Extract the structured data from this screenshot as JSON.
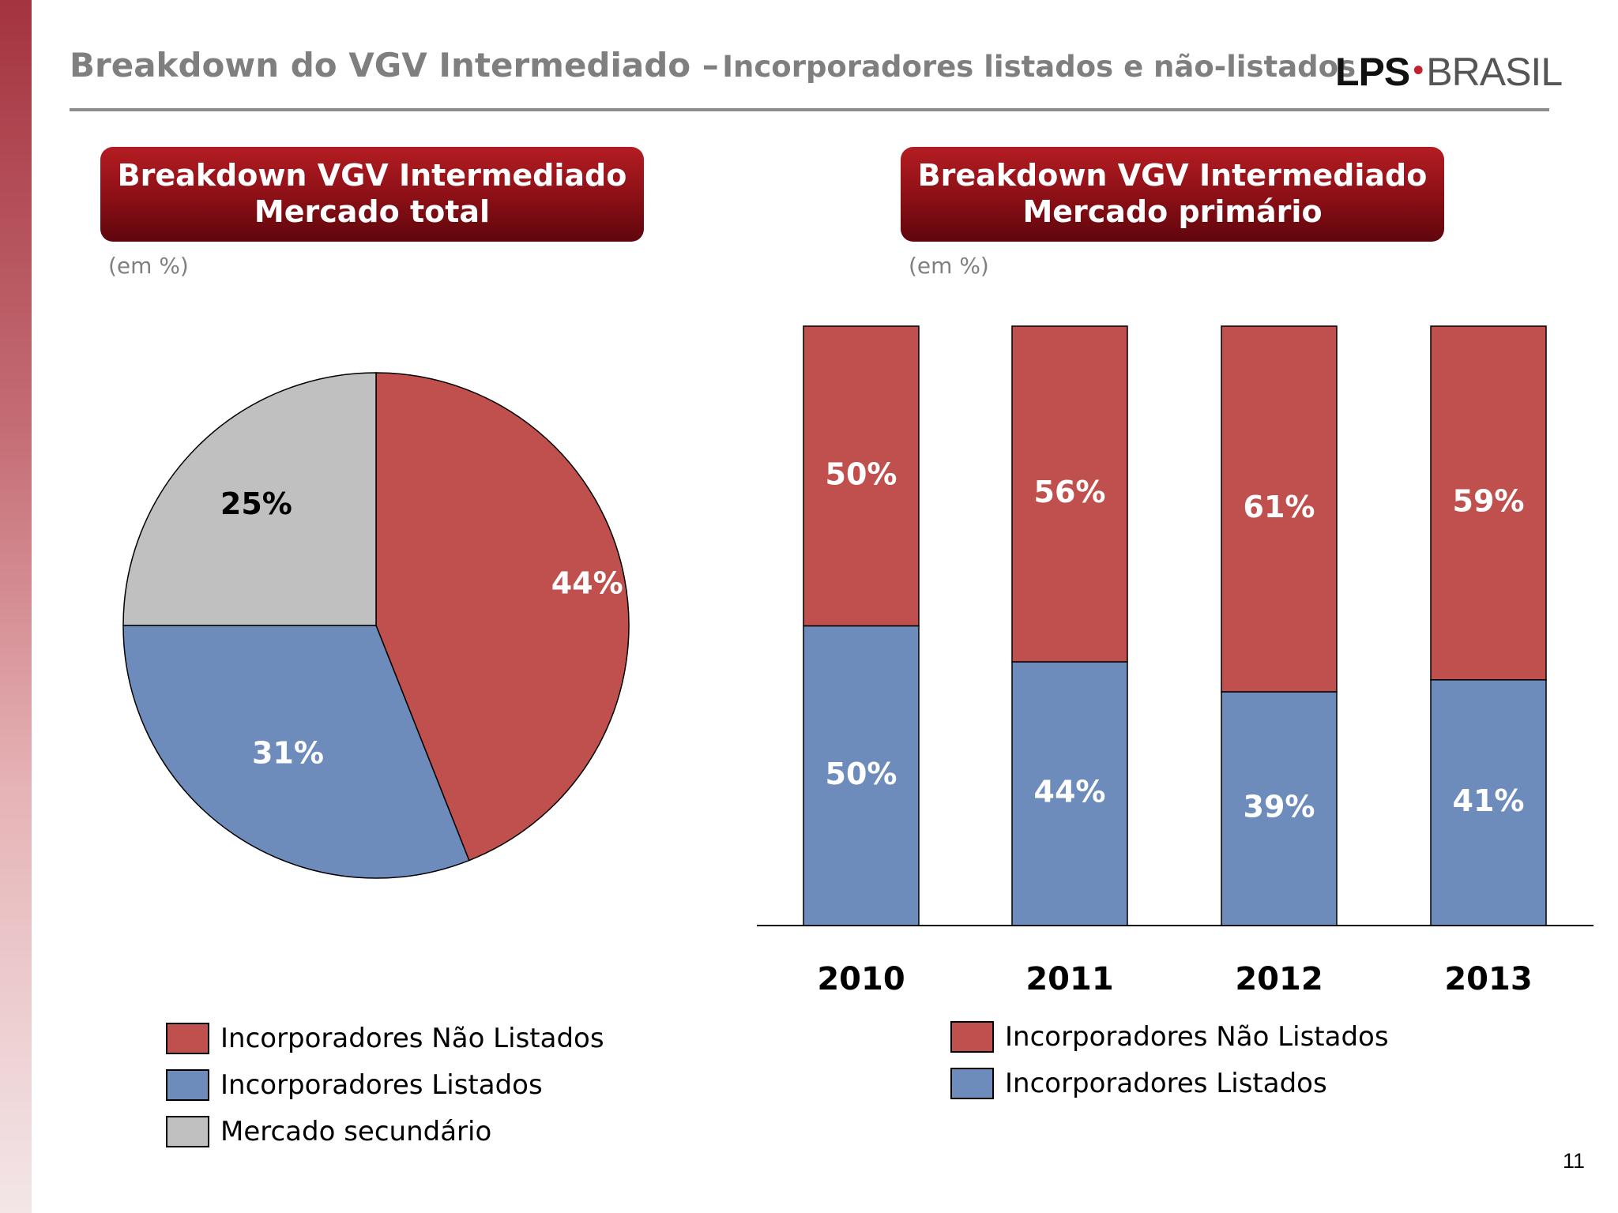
{
  "title": {
    "main": "Breakdown do VGV Intermediado –",
    "sub": "Incorporadores listados e não-listados"
  },
  "logo": {
    "lps": "LPS",
    "dot": "•",
    "brasil": "BRASIL"
  },
  "page_number": "11",
  "colors": {
    "nao_listados": "#c0504d",
    "listados": "#6e8cbb",
    "secundario": "#c0c0c0",
    "header_box": "#8a0f16"
  },
  "left_panel": {
    "header_line1": "Breakdown VGV Intermediado",
    "header_line2": "Mercado total",
    "unit": "(em %)",
    "legend": [
      "Incorporadores Não Listados",
      "Incorporadores Listados",
      "Mercado secundário"
    ]
  },
  "right_panel": {
    "header_line1": "Breakdown VGV Intermediado",
    "header_line2": "Mercado primário",
    "unit": "(em %)",
    "legend": [
      "Incorporadores Não Listados",
      "Incorporadores Listados"
    ]
  },
  "chart_data": [
    {
      "type": "pie",
      "title": "Breakdown VGV Intermediado Mercado total",
      "slices": [
        {
          "name": "Incorporadores Não Listados",
          "value": 44,
          "label": "44%",
          "color": "#c0504d"
        },
        {
          "name": "Incorporadores Listados",
          "value": 31,
          "label": "31%",
          "color": "#6e8cbb"
        },
        {
          "name": "Mercado secundário",
          "value": 25,
          "label": "25%",
          "color": "#c0c0c0"
        }
      ]
    },
    {
      "type": "bar",
      "stacked": true,
      "title": "Breakdown VGV Intermediado Mercado primário",
      "categories": [
        "2010",
        "2011",
        "2012",
        "2013"
      ],
      "series": [
        {
          "name": "Incorporadores Listados",
          "values": [
            50,
            44,
            39,
            41
          ],
          "labels": [
            "50%",
            "44%",
            "39%",
            "41%"
          ],
          "color": "#6e8cbb"
        },
        {
          "name": "Incorporadores Não Listados",
          "values": [
            50,
            56,
            61,
            59
          ],
          "labels": [
            "50%",
            "56%",
            "61%",
            "59%"
          ],
          "color": "#c0504d"
        }
      ],
      "ylim": [
        0,
        100
      ]
    }
  ]
}
